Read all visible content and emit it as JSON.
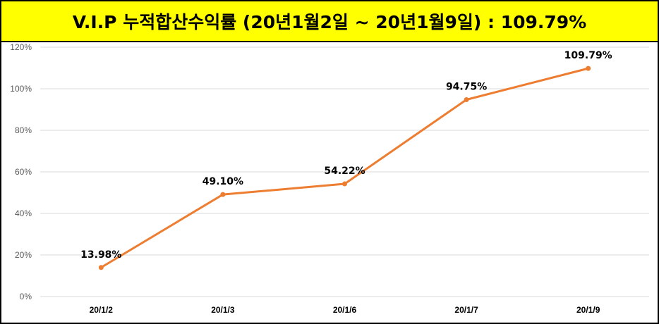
{
  "title": "V.I.P 누적합산수익률 (20년1월2일 ~ 20년1월9일) : 109.79%",
  "colors": {
    "title_bg": "#ffff00",
    "line": "#ed7d31",
    "grid": "#d9d9d9"
  },
  "chart_data": {
    "type": "line",
    "categories": [
      "20/1/2",
      "20/1/3",
      "20/1/6",
      "20/1/7",
      "20/1/9"
    ],
    "series": [
      {
        "values": [
          13.98,
          49.1,
          54.22,
          94.75,
          109.79
        ]
      }
    ],
    "data_labels": [
      "13.98%",
      "49.10%",
      "54.22%",
      "94.75%",
      "109.79%"
    ],
    "yticks": [
      "0%",
      "20%",
      "40%",
      "60%",
      "80%",
      "100%",
      "120%"
    ],
    "ylim": [
      0,
      120
    ],
    "grid": true,
    "legend": "none"
  }
}
